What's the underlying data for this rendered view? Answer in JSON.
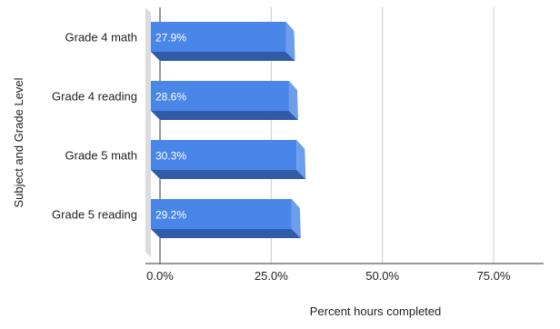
{
  "chart_data": {
    "type": "bar",
    "orientation": "horizontal",
    "style": "3d",
    "categories": [
      "Grade 4 math",
      "Grade 4 reading",
      "Grade 5 math",
      "Grade 5 reading"
    ],
    "values": [
      27.9,
      28.6,
      30.3,
      29.2
    ],
    "data_labels": [
      "27.9%",
      "28.6%",
      "30.3%",
      "29.2%"
    ],
    "xlabel": "Percent hours completed",
    "ylabel": "Subject and Grade Level",
    "x_ticks": [
      0,
      25,
      50,
      75
    ],
    "x_tick_labels": [
      "0.0%",
      "25.0%",
      "50.0%",
      "75.0%"
    ],
    "xlim": [
      0,
      85
    ],
    "grid": true,
    "legend": "none",
    "colors": {
      "bar_front": "#4a86e8",
      "bar_side": "#6d9eeb",
      "bar_bottom": "#2f5ba8",
      "gridline": "#cccccc",
      "axis": "#333333",
      "back_wall": "#dcdcdc"
    }
  }
}
